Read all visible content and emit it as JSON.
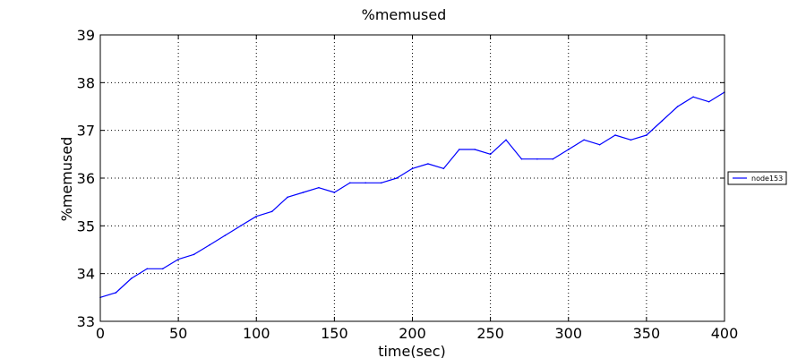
{
  "chart_data": {
    "type": "line",
    "title": "%memused",
    "xlabel": "time(sec)",
    "ylabel": "%memused",
    "xlim": [
      0,
      400
    ],
    "ylim": [
      33,
      39
    ],
    "xticks": [
      0,
      50,
      100,
      150,
      200,
      250,
      300,
      350,
      400
    ],
    "yticks": [
      33,
      34,
      35,
      36,
      37,
      38,
      39
    ],
    "grid": true,
    "legend_position": "right",
    "series": [
      {
        "name": "node153",
        "color": "#0000ff",
        "x": [
          0,
          10,
          20,
          30,
          40,
          50,
          60,
          70,
          80,
          90,
          100,
          110,
          120,
          130,
          140,
          150,
          160,
          170,
          180,
          190,
          200,
          210,
          220,
          230,
          240,
          250,
          260,
          270,
          280,
          290,
          300,
          310,
          320,
          330,
          340,
          350,
          360,
          370,
          380,
          390,
          400
        ],
        "y": [
          33.5,
          33.6,
          33.9,
          34.1,
          34.1,
          34.3,
          34.4,
          34.6,
          34.8,
          35.0,
          35.2,
          35.3,
          35.6,
          35.7,
          35.8,
          35.7,
          35.9,
          35.9,
          35.9,
          36.0,
          36.2,
          36.3,
          36.2,
          36.6,
          36.6,
          36.5,
          36.8,
          36.4,
          36.4,
          36.4,
          36.6,
          36.8,
          36.7,
          36.9,
          36.8,
          36.9,
          37.2,
          37.5,
          37.7,
          37.6,
          37.8
        ]
      }
    ]
  }
}
